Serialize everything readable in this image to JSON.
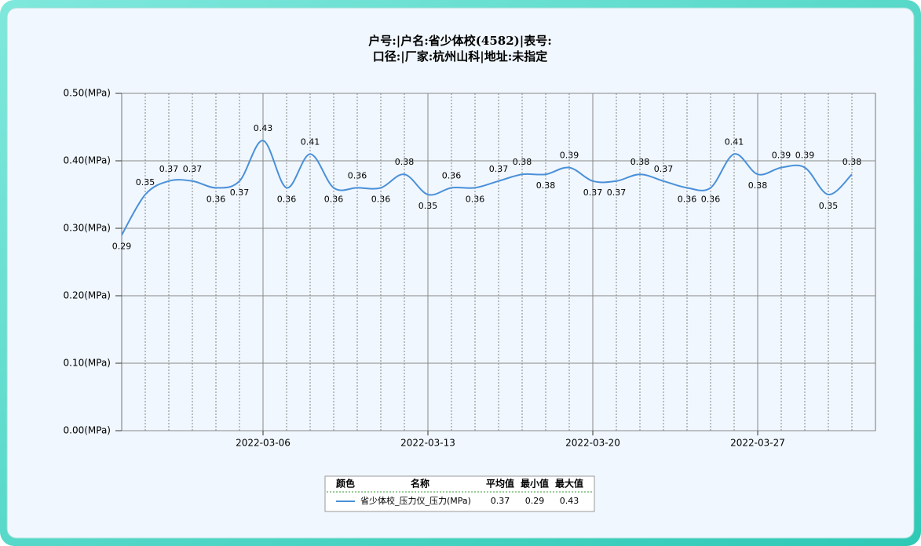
{
  "chart_data": {
    "type": "line",
    "title_lines": [
      "户号:|户名:省少体校(4582)|表号:",
      "口径:|厂家:杭州山科|地址:未指定"
    ],
    "x": [
      "2022-02-28",
      "2022-03-01",
      "2022-03-02",
      "2022-03-03",
      "2022-03-04",
      "2022-03-05",
      "2022-03-06",
      "2022-03-07",
      "2022-03-08",
      "2022-03-09",
      "2022-03-10",
      "2022-03-11",
      "2022-03-12",
      "2022-03-13",
      "2022-03-14",
      "2022-03-15",
      "2022-03-16",
      "2022-03-17",
      "2022-03-18",
      "2022-03-19",
      "2022-03-20",
      "2022-03-21",
      "2022-03-22",
      "2022-03-23",
      "2022-03-24",
      "2022-03-25",
      "2022-03-26",
      "2022-03-27",
      "2022-03-28",
      "2022-03-29",
      "2022-03-30",
      "2022-03-31"
    ],
    "series": [
      {
        "name": "省少体校_压力仪_压力(MPa)",
        "color": "#4a90d9",
        "values": [
          0.29,
          0.35,
          0.37,
          0.37,
          0.36,
          0.37,
          0.43,
          0.36,
          0.41,
          0.36,
          0.36,
          0.36,
          0.38,
          0.35,
          0.36,
          0.36,
          0.37,
          0.38,
          0.38,
          0.39,
          0.37,
          0.37,
          0.38,
          0.37,
          0.36,
          0.36,
          0.41,
          0.38,
          0.39,
          0.39,
          0.35,
          0.38
        ]
      }
    ],
    "xlim": [
      "2022-02-28",
      "2022-04-01"
    ],
    "xticks": [
      "2022-03-06",
      "2022-03-13",
      "2022-03-20",
      "2022-03-27"
    ],
    "ylim": [
      0,
      0.5
    ],
    "yticks": [
      {
        "value": 0,
        "label": "0.00(MPa)"
      },
      {
        "value": 0.1,
        "label": "0.10(MPa)"
      },
      {
        "value": 0.2,
        "label": "0.20(MPa)"
      },
      {
        "value": 0.3,
        "label": "0.30(MPa)"
      },
      {
        "value": 0.4,
        "label": "0.40(MPa)"
      },
      {
        "value": 0.5,
        "label": "0.50(MPa)"
      }
    ],
    "grid": true,
    "legend_table": {
      "headers": [
        "颜色",
        "名称",
        "平均值",
        "最小值",
        "最大值"
      ],
      "rows": [
        {
          "average": 0.37,
          "min": 0.29,
          "max": 0.43
        }
      ]
    }
  }
}
